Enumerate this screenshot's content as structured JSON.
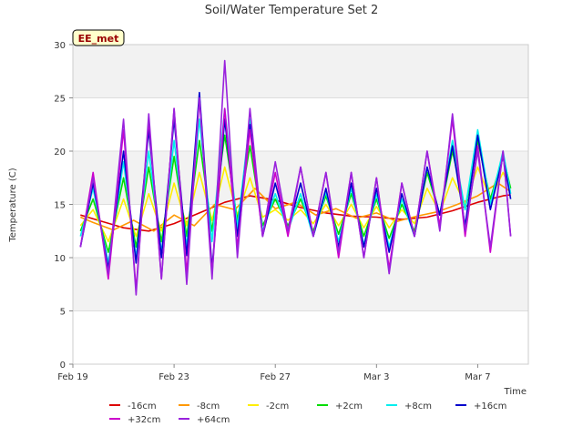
{
  "chart_data": {
    "type": "line",
    "title": "Soil/Water Temperature Set 2",
    "xlabel": "Time",
    "ylabel": "Temperature (C)",
    "badge": "EE_met",
    "xlim": [
      0,
      18
    ],
    "ylim": [
      0,
      30
    ],
    "x_ticks": [
      {
        "x": 0,
        "label": "Feb 19"
      },
      {
        "x": 4,
        "label": "Feb 23"
      },
      {
        "x": 8,
        "label": "Feb 27"
      },
      {
        "x": 12,
        "label": "Mar 3"
      },
      {
        "x": 16,
        "label": "Mar 7"
      }
    ],
    "y_ticks": [
      0,
      5,
      10,
      15,
      20,
      25,
      30
    ],
    "legend_position": "bottom",
    "series": [
      {
        "name": "-16cm",
        "color": "#dd0000",
        "x": [
          0.3,
          1,
          2,
          3,
          4,
          5,
          6,
          7,
          8,
          9,
          10,
          11,
          12,
          13,
          14,
          15,
          16,
          17,
          17.3
        ],
        "y": [
          14,
          13.5,
          12.8,
          12.5,
          13.2,
          14.2,
          15.2,
          15.8,
          15.4,
          14.7,
          14.2,
          13.9,
          13.8,
          13.6,
          13.8,
          14.4,
          15.2,
          15.8,
          15.9
        ]
      },
      {
        "name": "-8cm",
        "color": "#ff9900",
        "x": [
          0.3,
          0.8,
          1.6,
          2.4,
          3.2,
          4.0,
          4.8,
          5.6,
          6.4,
          7.2,
          8.0,
          8.8,
          9.6,
          10.4,
          11.2,
          12.0,
          12.8,
          13.6,
          14.4,
          15.2,
          16.0,
          16.8,
          17.3
        ],
        "y": [
          13.8,
          13.3,
          12.6,
          13.5,
          12.5,
          14.0,
          13.0,
          15.0,
          14.5,
          16.5,
          14.6,
          15.2,
          14.0,
          14.6,
          13.7,
          14.2,
          13.4,
          13.9,
          14.3,
          15.0,
          15.8,
          17.0,
          16.2
        ]
      },
      {
        "name": "-2cm",
        "color": "#ffee00",
        "x": [
          0.3,
          0.8,
          1.4,
          2.0,
          2.5,
          3.0,
          3.5,
          4.0,
          4.5,
          5.0,
          5.5,
          6.0,
          6.5,
          7.0,
          7.5,
          8.0,
          8.5,
          9.0,
          9.5,
          10.0,
          10.5,
          11.0,
          11.5,
          12.0,
          12.5,
          13.0,
          13.5,
          14.0,
          14.5,
          15.0,
          15.5,
          16.0,
          16.5,
          17.0,
          17.3
        ],
        "y": [
          13.0,
          14.5,
          11.5,
          15.5,
          12.0,
          16.0,
          12.5,
          17.0,
          13.0,
          18.0,
          13.5,
          18.5,
          14.0,
          17.5,
          13.8,
          14.5,
          13.5,
          14.5,
          13.2,
          15.0,
          13.0,
          15.0,
          12.8,
          14.8,
          12.8,
          14.5,
          13.2,
          16.5,
          14.2,
          17.5,
          15.0,
          18.5,
          15.5,
          18.0,
          16.5
        ]
      },
      {
        "name": "+2cm",
        "color": "#00dd00",
        "x": [
          0.3,
          0.8,
          1.4,
          2.0,
          2.5,
          3.0,
          3.5,
          4.0,
          4.5,
          5.0,
          5.5,
          6.0,
          6.5,
          7.0,
          7.5,
          8.0,
          8.5,
          9.0,
          9.5,
          10.0,
          10.5,
          11.0,
          11.5,
          12.0,
          12.5,
          13.0,
          13.5,
          14.0,
          14.5,
          15.0,
          15.5,
          16.0,
          16.5,
          17.0,
          17.3
        ],
        "y": [
          12.5,
          15.5,
          10.5,
          17.5,
          11.0,
          18.5,
          11.5,
          19.5,
          12.0,
          21.0,
          12.5,
          21.5,
          13.5,
          20.5,
          13.0,
          15.5,
          13.0,
          15.5,
          12.5,
          15.8,
          12.2,
          16.0,
          12.0,
          15.5,
          11.8,
          15.0,
          12.5,
          18.0,
          14.0,
          20.0,
          14.5,
          21.0,
          15.5,
          19.5,
          16.5
        ]
      },
      {
        "name": "+8cm",
        "color": "#00eeee",
        "x": [
          0.3,
          0.8,
          1.4,
          2.0,
          2.5,
          3.0,
          3.5,
          4.0,
          4.5,
          5.0,
          5.5,
          6.0,
          6.5,
          7.0,
          7.5,
          8.0,
          8.5,
          9.0,
          9.5,
          10.0,
          10.5,
          11.0,
          11.5,
          12.0,
          12.5,
          13.0,
          13.5,
          14.0,
          14.5,
          15.0,
          15.5,
          16.0,
          16.5,
          17.0,
          17.3
        ],
        "y": [
          12.0,
          16.5,
          9.5,
          19.0,
          10.0,
          20.0,
          10.5,
          21.0,
          11.0,
          23.0,
          11.5,
          24.0,
          12.8,
          23.0,
          12.5,
          16.0,
          12.5,
          16.0,
          12.0,
          16.2,
          11.5,
          16.5,
          11.2,
          16.0,
          11.0,
          15.5,
          12.0,
          18.5,
          14.0,
          21.0,
          14.5,
          22.0,
          15.0,
          20.0,
          16.0
        ]
      },
      {
        "name": "+16cm",
        "color": "#0000cc",
        "x": [
          0.3,
          0.8,
          1.4,
          2.0,
          2.5,
          3.0,
          3.5,
          4.0,
          4.5,
          5.0,
          5.5,
          6.0,
          6.5,
          7.0,
          7.5,
          8.0,
          8.5,
          9.0,
          9.5,
          10.0,
          10.5,
          11.0,
          11.5,
          12.0,
          12.5,
          13.0,
          13.5,
          14.0,
          14.5,
          15.0,
          15.5,
          16.0,
          16.5,
          17.0,
          17.3
        ],
        "y": [
          11.0,
          17.0,
          9.0,
          20.0,
          9.5,
          22.0,
          10.0,
          23.0,
          10.2,
          25.5,
          9.0,
          23.0,
          12.0,
          22.5,
          12.0,
          17.0,
          12.5,
          17.0,
          12.0,
          16.5,
          11.0,
          17.0,
          11.0,
          16.5,
          10.5,
          16.0,
          12.0,
          18.5,
          14.0,
          20.5,
          13.0,
          21.5,
          14.5,
          19.5,
          15.5
        ]
      },
      {
        "name": "+32cm",
        "color": "#cc00cc",
        "x": [
          0.3,
          0.8,
          1.4,
          2.0,
          2.5,
          3.0,
          3.5,
          4.0,
          4.5,
          5.0,
          5.5,
          6.0,
          6.5,
          7.0,
          7.5,
          8.0,
          8.5,
          9.0,
          9.5,
          10.0,
          10.5,
          11.0,
          11.5,
          12.0,
          12.5,
          13.0,
          13.5,
          14.0,
          14.5,
          15.0,
          15.5,
          16.0,
          16.5,
          17.0,
          17.3
        ],
        "y": [
          11.0,
          18.0,
          8.0,
          22.0,
          7.0,
          23.0,
          8.0,
          24.0,
          8.5,
          25.0,
          8.5,
          24.0,
          11.0,
          22.0,
          12.0,
          18.0,
          12.0,
          18.5,
          12.0,
          18.0,
          10.0,
          18.0,
          10.0,
          17.5,
          9.0,
          17.0,
          12.0,
          20.0,
          13.0,
          23.0,
          12.0,
          20.5,
          10.5,
          20.0,
          12.0
        ]
      },
      {
        "name": "+64cm",
        "color": "#9922dd",
        "x": [
          0.3,
          0.8,
          1.4,
          2.0,
          2.5,
          3.0,
          3.5,
          4.0,
          4.5,
          5.0,
          5.5,
          6.0,
          6.5,
          7.0,
          7.5,
          8.0,
          8.5,
          9.0,
          9.5,
          10.0,
          10.5,
          11.0,
          11.5,
          12.0,
          12.5,
          13.0,
          13.5,
          14.0,
          14.5,
          15.0,
          15.5,
          16.0,
          16.5,
          17.0,
          17.3
        ],
        "y": [
          11.0,
          17.5,
          8.5,
          23.0,
          6.5,
          23.5,
          8.0,
          24.0,
          7.5,
          25.0,
          8.0,
          28.5,
          10.0,
          24.0,
          12.0,
          19.0,
          12.5,
          18.5,
          12.0,
          18.0,
          10.5,
          18.0,
          10.0,
          17.5,
          8.5,
          17.0,
          12.0,
          20.0,
          12.5,
          23.5,
          12.5,
          20.0,
          11.0,
          20.0,
          12.0
        ]
      }
    ]
  }
}
